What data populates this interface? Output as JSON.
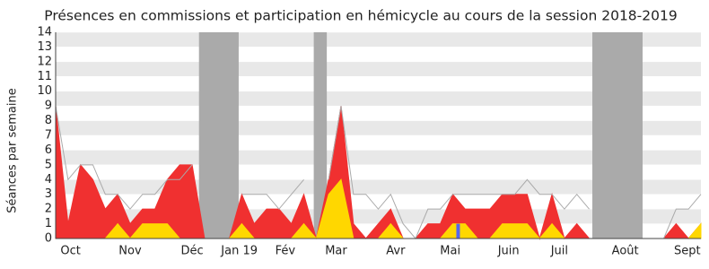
{
  "chart_data": {
    "type": "area",
    "title": "Présences en commissions et participation en hémicycle au cours de la session 2018-2019",
    "y_label": "Séances par semaine",
    "xlim": [
      0,
      52
    ],
    "ylim": [
      0,
      14
    ],
    "yticks": [
      0,
      1,
      2,
      3,
      4,
      5,
      6,
      7,
      8,
      9,
      10,
      11,
      12,
      13,
      14
    ],
    "x_labels": [
      {
        "value": 1.2,
        "label": "Oct"
      },
      {
        "value": 6,
        "label": "Nov"
      },
      {
        "value": 11,
        "label": "Déc"
      },
      {
        "value": 14.8,
        "label": "Jan 19"
      },
      {
        "value": 18.5,
        "label": "Fév"
      },
      {
        "value": 22.6,
        "label": "Mar"
      },
      {
        "value": 27.4,
        "label": "Avr"
      },
      {
        "value": 31.8,
        "label": "Mai"
      },
      {
        "value": 36.5,
        "label": "Juin"
      },
      {
        "value": 40.6,
        "label": "Juil"
      },
      {
        "value": 45.9,
        "label": "Août"
      },
      {
        "value": 50.9,
        "label": "Sept"
      }
    ],
    "shaded_ranges": [
      [
        11.55,
        14.75
      ],
      [
        20.8,
        21.85
      ],
      [
        43.25,
        47.3
      ]
    ],
    "shade_color": "#aaaaaa",
    "stripe_color": "#e8e8e8",
    "series": [
      {
        "color": "#f03030",
        "style": "area",
        "values": [
          9,
          1,
          5,
          4,
          2,
          3,
          1,
          2,
          2,
          4,
          5,
          5,
          0,
          0,
          0,
          3,
          1,
          2,
          2,
          1,
          3,
          0,
          4,
          9,
          1,
          0,
          1,
          2,
          0,
          0,
          1,
          1,
          3,
          2,
          2,
          2,
          3,
          3,
          3,
          0,
          3,
          0,
          1,
          0,
          0,
          0,
          0,
          0,
          0,
          0,
          1,
          0,
          1
        ]
      },
      {
        "color": "#ffd700",
        "style": "area",
        "values": [
          0,
          0,
          0,
          0,
          0,
          1,
          0,
          1,
          1,
          1,
          0,
          0,
          0,
          0,
          0,
          1,
          0,
          0,
          0,
          0,
          1,
          0,
          3,
          4,
          0,
          0,
          0,
          1,
          0,
          0,
          0,
          0,
          1,
          1,
          0,
          0,
          1,
          1,
          1,
          0,
          1,
          0,
          0,
          0,
          0,
          0,
          0,
          0,
          0,
          0,
          0,
          0,
          1
        ]
      },
      {
        "color": "#aaaaaa",
        "style": "line",
        "values": [
          9,
          4,
          5,
          5,
          3,
          3,
          2,
          3,
          3,
          4,
          4,
          5,
          null,
          null,
          null,
          3,
          3,
          3,
          2,
          3,
          4,
          null,
          4,
          9,
          3,
          3,
          2,
          3,
          1,
          0,
          2,
          2,
          3,
          3,
          3,
          3,
          3,
          3,
          4,
          3,
          3,
          2,
          3,
          2,
          null,
          null,
          null,
          null,
          null,
          0,
          2,
          2,
          3
        ]
      },
      {
        "color": "#5566ee",
        "style": "bar",
        "values": [
          0,
          0,
          0,
          0,
          0,
          0,
          0,
          0,
          0,
          0,
          0,
          0,
          0,
          0,
          0,
          0,
          0,
          0,
          0,
          0,
          0,
          0,
          0,
          0,
          0,
          0,
          0,
          0,
          0,
          0,
          0,
          0,
          1,
          0,
          0,
          0,
          0,
          0,
          0,
          0,
          0,
          0,
          0,
          0,
          0,
          0,
          0,
          0,
          0,
          0,
          0,
          0,
          0
        ]
      }
    ]
  }
}
